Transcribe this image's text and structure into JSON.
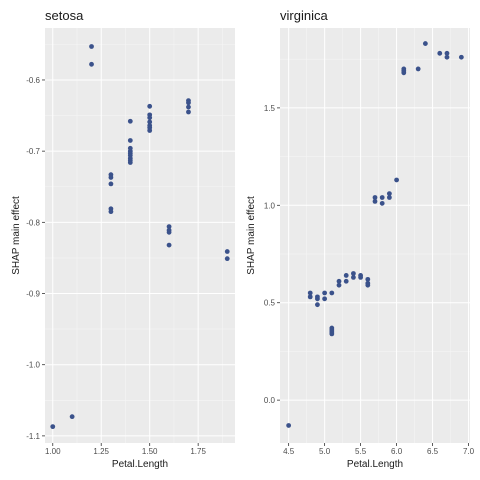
{
  "chart_data": [
    {
      "type": "scatter",
      "title": "setosa",
      "xlabel": "Petal.Length",
      "ylabel": "SHAP main effect",
      "xlim": [
        0.96,
        1.94
      ],
      "ylim": [
        -1.11,
        -0.527
      ],
      "x_ticks": [
        1.0,
        1.25,
        1.5,
        1.75
      ],
      "x_tick_labels": [
        "1.00",
        "1.25",
        "1.50",
        "1.75"
      ],
      "y_ticks": [
        -1.1,
        -1.0,
        -0.9,
        -0.8,
        -0.7,
        -0.6
      ],
      "y_tick_labels": [
        "-1.1",
        "-1.0",
        "-0.9",
        "-0.8",
        "-0.7",
        "-0.6"
      ],
      "grid": true,
      "point_color": "#3b528b",
      "points": [
        [
          1.0,
          -1.087
        ],
        [
          1.1,
          -1.073
        ],
        [
          1.2,
          -0.553
        ],
        [
          1.2,
          -0.578
        ],
        [
          1.3,
          -0.733
        ],
        [
          1.3,
          -0.737
        ],
        [
          1.3,
          -0.746
        ],
        [
          1.3,
          -0.781
        ],
        [
          1.3,
          -0.785
        ],
        [
          1.4,
          -0.658
        ],
        [
          1.4,
          -0.685
        ],
        [
          1.4,
          -0.696
        ],
        [
          1.4,
          -0.7
        ],
        [
          1.4,
          -0.703
        ],
        [
          1.4,
          -0.706
        ],
        [
          1.4,
          -0.71
        ],
        [
          1.4,
          -0.713
        ],
        [
          1.4,
          -0.716
        ],
        [
          1.5,
          -0.637
        ],
        [
          1.5,
          -0.649
        ],
        [
          1.5,
          -0.653
        ],
        [
          1.5,
          -0.659
        ],
        [
          1.5,
          -0.664
        ],
        [
          1.5,
          -0.667
        ],
        [
          1.5,
          -0.671
        ],
        [
          1.6,
          -0.806
        ],
        [
          1.6,
          -0.811
        ],
        [
          1.6,
          -0.814
        ],
        [
          1.6,
          -0.832
        ],
        [
          1.7,
          -0.629
        ],
        [
          1.7,
          -0.632
        ],
        [
          1.7,
          -0.638
        ],
        [
          1.7,
          -0.645
        ],
        [
          1.9,
          -0.841
        ],
        [
          1.9,
          -0.851
        ]
      ]
    },
    {
      "type": "scatter",
      "title": "virginica",
      "xlabel": "Petal.Length",
      "ylabel": "SHAP main effect",
      "xlim": [
        4.38,
        7.02
      ],
      "ylim": [
        -0.22,
        1.91
      ],
      "x_ticks": [
        4.5,
        5.0,
        5.5,
        6.0,
        6.5,
        7.0
      ],
      "x_tick_labels": [
        "4.5",
        "5.0",
        "5.5",
        "6.0",
        "6.5",
        "7.0"
      ],
      "y_ticks": [
        0.0,
        0.5,
        1.0,
        1.5
      ],
      "y_tick_labels": [
        "0.0",
        "0.5",
        "1.0",
        "1.5"
      ],
      "grid": true,
      "point_color": "#3b528b",
      "points": [
        [
          4.5,
          -0.13
        ],
        [
          4.8,
          0.53
        ],
        [
          4.8,
          0.55
        ],
        [
          4.9,
          0.49
        ],
        [
          4.9,
          0.52
        ],
        [
          4.9,
          0.53
        ],
        [
          5.0,
          0.52
        ],
        [
          5.0,
          0.55
        ],
        [
          5.1,
          0.34
        ],
        [
          5.1,
          0.35
        ],
        [
          5.1,
          0.36
        ],
        [
          5.1,
          0.37
        ],
        [
          5.1,
          0.55
        ],
        [
          5.2,
          0.59
        ],
        [
          5.2,
          0.61
        ],
        [
          5.3,
          0.61
        ],
        [
          5.3,
          0.64
        ],
        [
          5.4,
          0.63
        ],
        [
          5.4,
          0.65
        ],
        [
          5.5,
          0.63
        ],
        [
          5.5,
          0.64
        ],
        [
          5.6,
          0.59
        ],
        [
          5.6,
          0.6
        ],
        [
          5.6,
          0.62
        ],
        [
          5.7,
          1.02
        ],
        [
          5.7,
          1.04
        ],
        [
          5.8,
          1.01
        ],
        [
          5.8,
          1.04
        ],
        [
          5.9,
          1.04
        ],
        [
          5.9,
          1.06
        ],
        [
          6.0,
          1.13
        ],
        [
          6.1,
          1.68
        ],
        [
          6.1,
          1.69
        ],
        [
          6.1,
          1.7
        ],
        [
          6.3,
          1.7
        ],
        [
          6.4,
          1.83
        ],
        [
          6.6,
          1.78
        ],
        [
          6.7,
          1.76
        ],
        [
          6.7,
          1.78
        ],
        [
          6.9,
          1.76
        ]
      ]
    }
  ]
}
